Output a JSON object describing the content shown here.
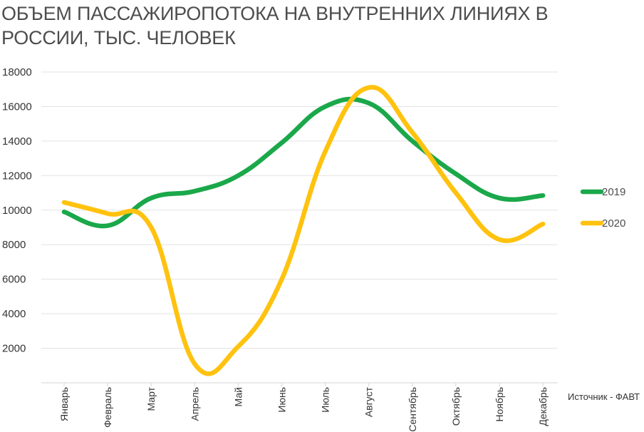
{
  "chart_data": {
    "type": "line",
    "title": "ОБЪЕМ ПАССАЖИРОПОТОКА НА ВНУТРЕННИХ ЛИНИЯХ В РОССИИ, ТЫС. ЧЕЛОВЕК",
    "categories": [
      "Январь",
      "Февраль",
      "Март",
      "Апрель",
      "Май",
      "Июнь",
      "Июль",
      "Август",
      "Сентябрь",
      "Октябрь",
      "Ноябрь",
      "Декабрь"
    ],
    "series": [
      {
        "name": "2019",
        "color": "#1aa84a",
        "values": [
          9900,
          9100,
          10700,
          11100,
          12000,
          13900,
          16000,
          16200,
          14000,
          12100,
          10700,
          10850
        ]
      },
      {
        "name": "2020",
        "color": "#ffc20e",
        "values": [
          10450,
          9800,
          9000,
          1100,
          2100,
          6000,
          13400,
          17100,
          14500,
          11000,
          8300,
          9200
        ]
      }
    ],
    "yticks": [
      2000,
      4000,
      6000,
      8000,
      10000,
      12000,
      14000,
      16000,
      18000
    ],
    "ylim": [
      0,
      18000
    ],
    "grid": true,
    "legend_position": "right",
    "xlabel": "",
    "ylabel": "",
    "source": "Источник - ФАВТ"
  }
}
